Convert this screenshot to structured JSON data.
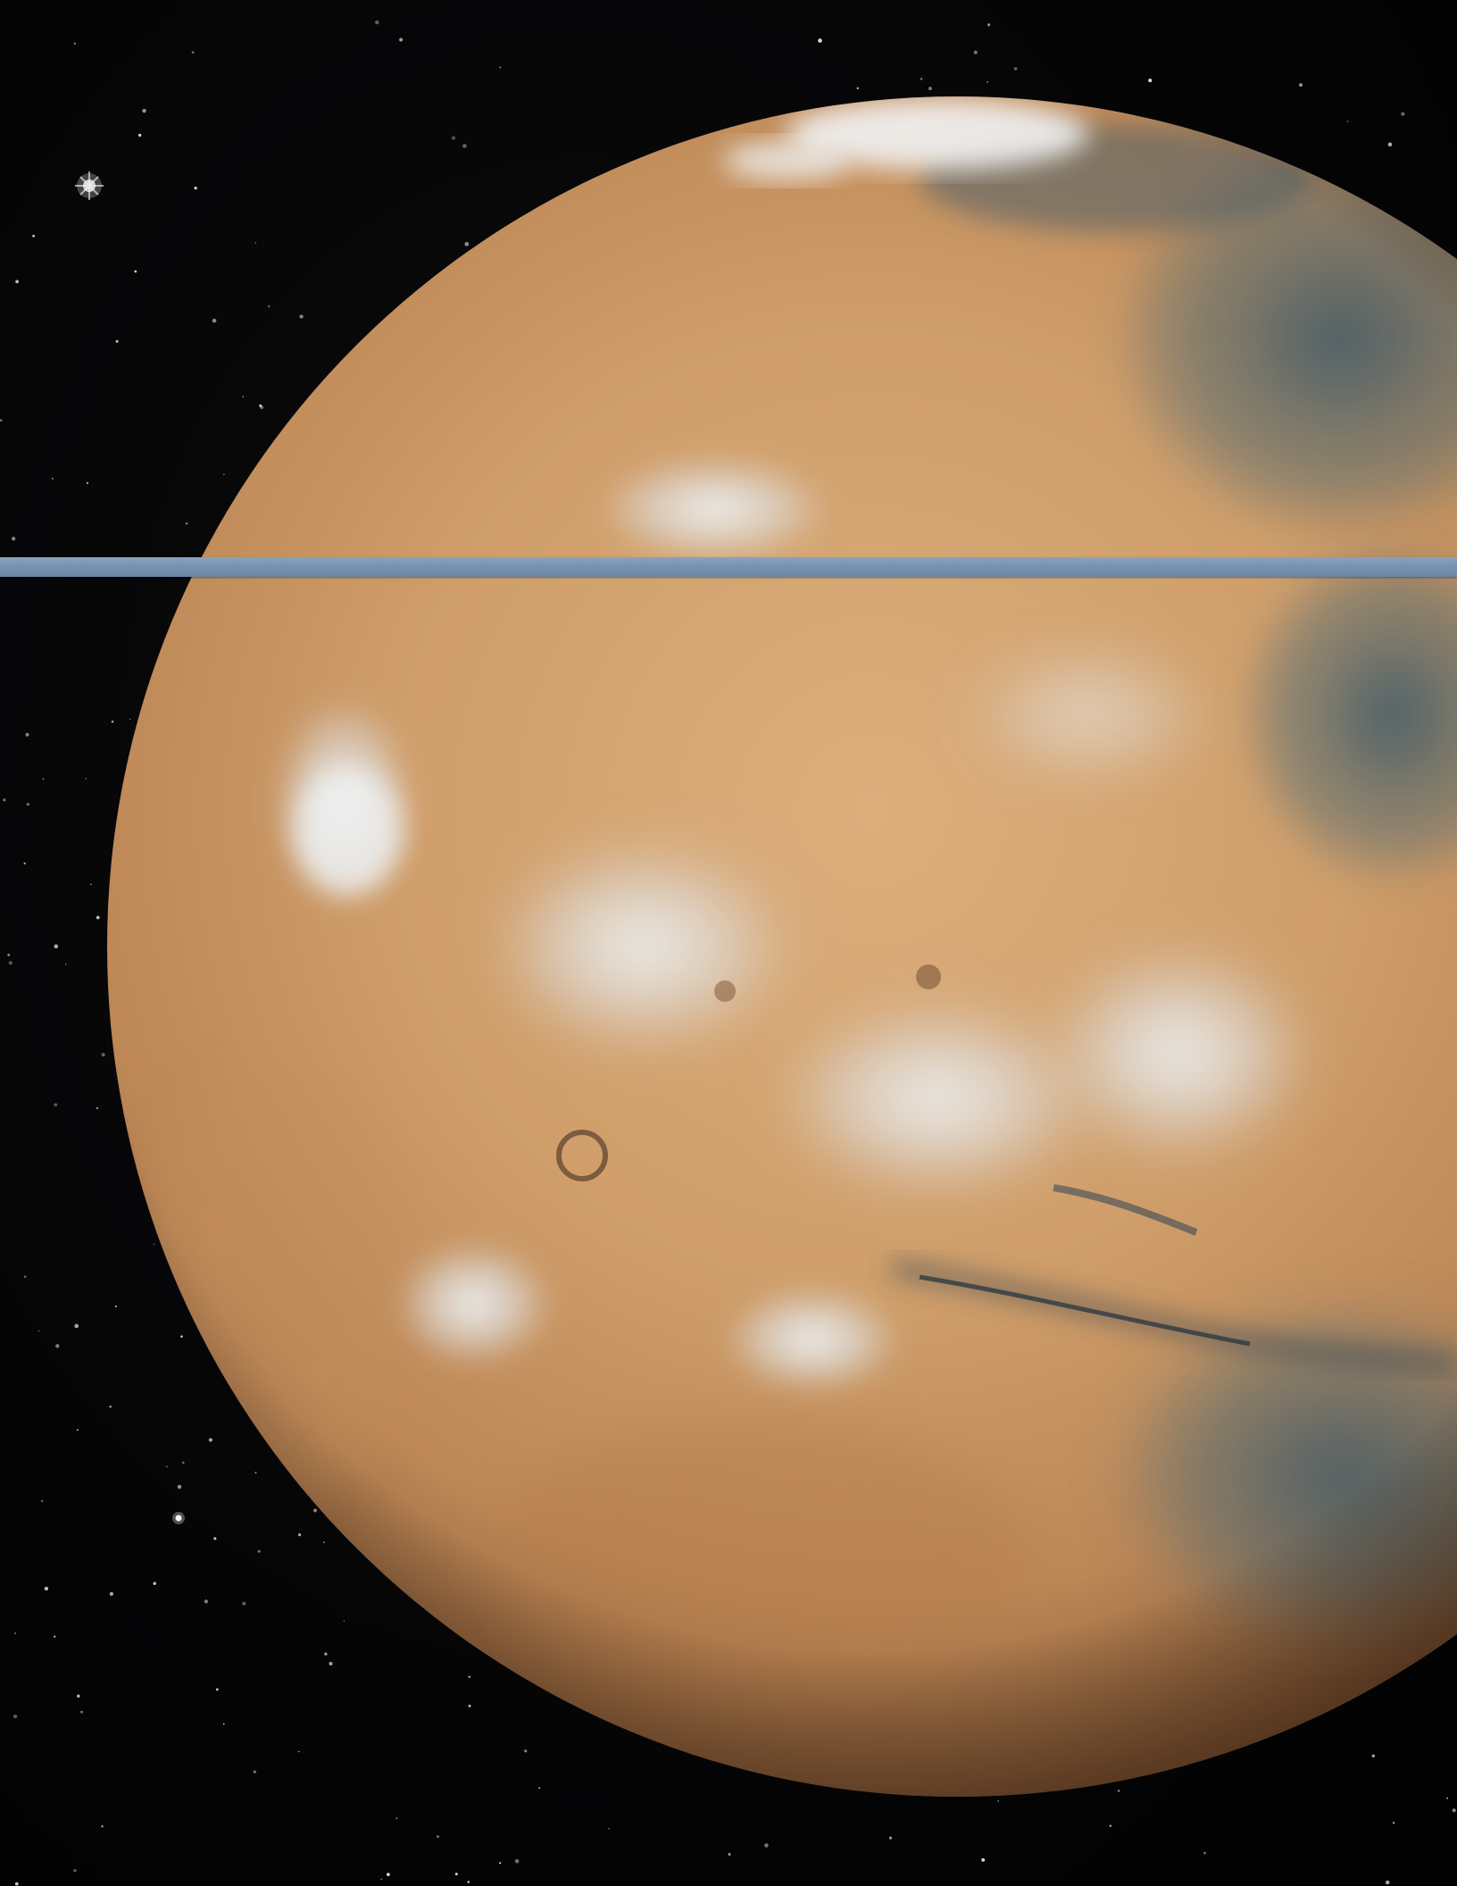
{
  "image": {
    "subject": "planet-photograph",
    "colors": {
      "space": "#050505",
      "planet_base": "#c9935f",
      "planet_light": "#dcae7c",
      "planet_shadow": "#8a5a34",
      "cloud": "#e8ecef",
      "dark_region": "#3f5a6b",
      "divider_bar": "#7b95b4",
      "star": "#e6e6e6"
    }
  }
}
